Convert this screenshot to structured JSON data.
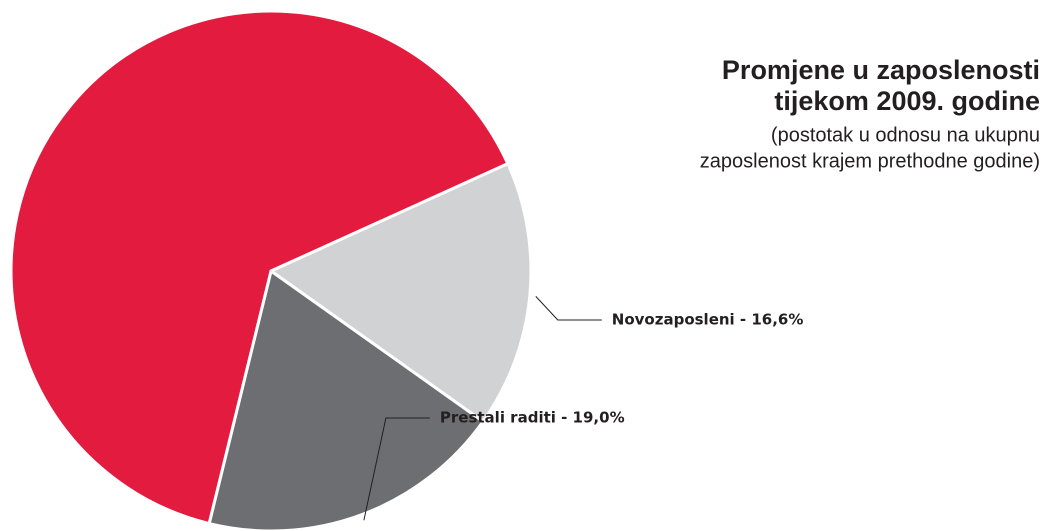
{
  "chart_data": {
    "type": "pie",
    "title": [
      "Promjene u zaposlenosti",
      "tijekom 2009. godine"
    ],
    "subtitle": [
      "(postotak u odnosu na ukupnu",
      "zaposlenost krajem prethodne godine)"
    ],
    "values": [
      16.6,
      19.0,
      64.4
    ],
    "value_labels": [
      "Novozaposleni - 16,6%",
      "Prestali raditi - 19,0%",
      null
    ],
    "colors": [
      "#d1d2d4",
      "#6d6e71",
      "#e31b3f"
    ]
  }
}
